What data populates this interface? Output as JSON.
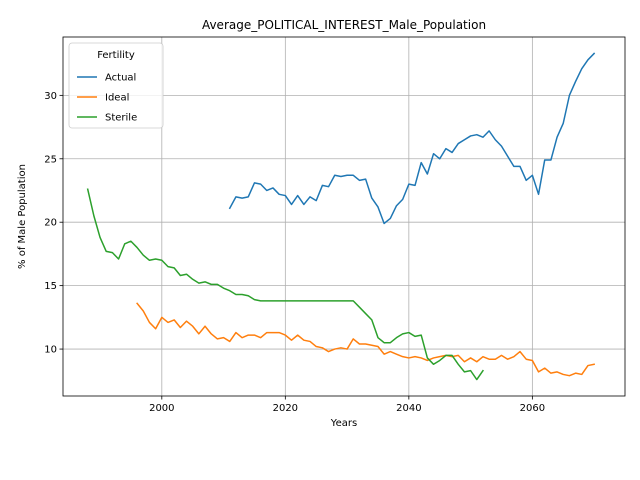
{
  "chart_data": {
    "type": "line",
    "title": "Average_POLITICAL_INTEREST_Male_Population",
    "xlabel": "Years",
    "ylabel": "% of Male Population",
    "xlim": [
      1984,
      2075
    ],
    "ylim": [
      6.3,
      34.6
    ],
    "xticks": [
      2000,
      2020,
      2040,
      2060
    ],
    "yticks": [
      10,
      15,
      20,
      25,
      30
    ],
    "grid": true,
    "legend": {
      "title": "Fertility",
      "position": "top-left"
    },
    "series": [
      {
        "name": "Actual",
        "color": "#1f77b4",
        "x": [
          2011,
          2012,
          2013,
          2014,
          2015,
          2016,
          2017,
          2018,
          2019,
          2020,
          2021,
          2022,
          2023,
          2024,
          2025,
          2026,
          2027,
          2028,
          2029,
          2030,
          2031,
          2032,
          2033,
          2034,
          2035,
          2036,
          2037,
          2038,
          2039,
          2040,
          2041,
          2042,
          2043,
          2044,
          2045,
          2046,
          2047,
          2048,
          2049,
          2050,
          2051,
          2052,
          2053,
          2054,
          2055,
          2056,
          2057,
          2058,
          2059,
          2060,
          2061,
          2062,
          2063,
          2064,
          2065,
          2066,
          2067,
          2068,
          2069,
          2070
        ],
        "y": [
          21.1,
          22.0,
          21.9,
          22.0,
          23.1,
          23.0,
          22.5,
          22.7,
          22.2,
          22.1,
          21.4,
          22.1,
          21.4,
          22.0,
          21.7,
          22.9,
          22.8,
          23.7,
          23.6,
          23.7,
          23.7,
          23.3,
          23.4,
          21.9,
          21.2,
          19.9,
          20.3,
          21.3,
          21.8,
          23.0,
          22.9,
          24.7,
          23.8,
          25.4,
          25.0,
          25.8,
          25.5,
          26.2,
          26.5,
          26.8,
          26.9,
          26.7,
          27.2,
          26.5,
          26.0,
          25.2,
          24.4,
          24.4,
          23.3,
          23.7,
          22.2,
          24.9,
          24.9,
          26.7,
          27.8,
          30.0,
          31.1,
          32.1,
          32.8,
          33.3
        ]
      },
      {
        "name": "Ideal",
        "color": "#ff7f0e",
        "x": [
          1996,
          1997,
          1998,
          1999,
          2000,
          2001,
          2002,
          2003,
          2004,
          2005,
          2006,
          2007,
          2008,
          2009,
          2010,
          2011,
          2012,
          2013,
          2014,
          2015,
          2016,
          2017,
          2018,
          2019,
          2020,
          2021,
          2022,
          2023,
          2024,
          2025,
          2026,
          2027,
          2028,
          2029,
          2030,
          2031,
          2032,
          2033,
          2034,
          2035,
          2036,
          2037,
          2038,
          2039,
          2040,
          2041,
          2042,
          2043,
          2044,
          2045,
          2046,
          2047,
          2048,
          2049,
          2050,
          2051,
          2052,
          2053,
          2054,
          2055,
          2056,
          2057,
          2058,
          2059,
          2060,
          2061,
          2062,
          2063,
          2064,
          2065,
          2066,
          2067,
          2068,
          2069,
          2070
        ],
        "y": [
          13.6,
          13.0,
          12.1,
          11.6,
          12.5,
          12.1,
          12.3,
          11.7,
          12.2,
          11.8,
          11.2,
          11.8,
          11.2,
          10.8,
          10.9,
          10.6,
          11.3,
          10.9,
          11.1,
          11.1,
          10.9,
          11.3,
          11.3,
          11.3,
          11.1,
          10.7,
          11.1,
          10.7,
          10.6,
          10.2,
          10.1,
          9.8,
          10.0,
          10.1,
          10.0,
          10.8,
          10.4,
          10.4,
          10.3,
          10.2,
          9.6,
          9.8,
          9.6,
          9.4,
          9.3,
          9.4,
          9.3,
          9.1,
          9.3,
          9.4,
          9.5,
          9.4,
          9.5,
          9.0,
          9.3,
          9.0,
          9.4,
          9.2,
          9.2,
          9.5,
          9.2,
          9.4,
          9.8,
          9.2,
          9.1,
          8.2,
          8.5,
          8.1,
          8.2,
          8.0,
          7.9,
          8.1,
          8.0,
          8.7,
          8.8
        ]
      },
      {
        "name": "Sterile",
        "color": "#2ca02c",
        "x": [
          1988,
          1989,
          1990,
          1991,
          1992,
          1993,
          1994,
          1995,
          1996,
          1997,
          1998,
          1999,
          2000,
          2001,
          2002,
          2003,
          2004,
          2005,
          2006,
          2007,
          2008,
          2009,
          2010,
          2011,
          2012,
          2013,
          2014,
          2015,
          2016,
          2017,
          2018,
          2019,
          2020,
          2021,
          2022,
          2023,
          2024,
          2025,
          2026,
          2027,
          2028,
          2029,
          2030,
          2031,
          2032,
          2033,
          2034,
          2035,
          2036,
          2037,
          2038,
          2039,
          2040,
          2041,
          2042,
          2043,
          2044,
          2045,
          2046,
          2047,
          2048,
          2049,
          2050,
          2051,
          2052
        ],
        "y": [
          22.6,
          20.5,
          18.8,
          17.7,
          17.6,
          17.1,
          18.3,
          18.5,
          18.0,
          17.4,
          17.0,
          17.1,
          17.0,
          16.5,
          16.4,
          15.8,
          15.9,
          15.5,
          15.2,
          15.3,
          15.1,
          15.1,
          14.8,
          14.6,
          14.3,
          14.3,
          14.2,
          13.9,
          13.8,
          13.8,
          13.8,
          13.8,
          13.8,
          13.8,
          13.8,
          13.8,
          13.8,
          13.8,
          13.8,
          13.8,
          13.8,
          13.8,
          13.8,
          13.8,
          13.3,
          12.8,
          12.3,
          10.9,
          10.5,
          10.5,
          10.9,
          11.2,
          11.3,
          11.0,
          11.1,
          9.3,
          8.8,
          9.1,
          9.5,
          9.5,
          8.8,
          8.2,
          8.3,
          7.6,
          8.3
        ]
      }
    ]
  }
}
